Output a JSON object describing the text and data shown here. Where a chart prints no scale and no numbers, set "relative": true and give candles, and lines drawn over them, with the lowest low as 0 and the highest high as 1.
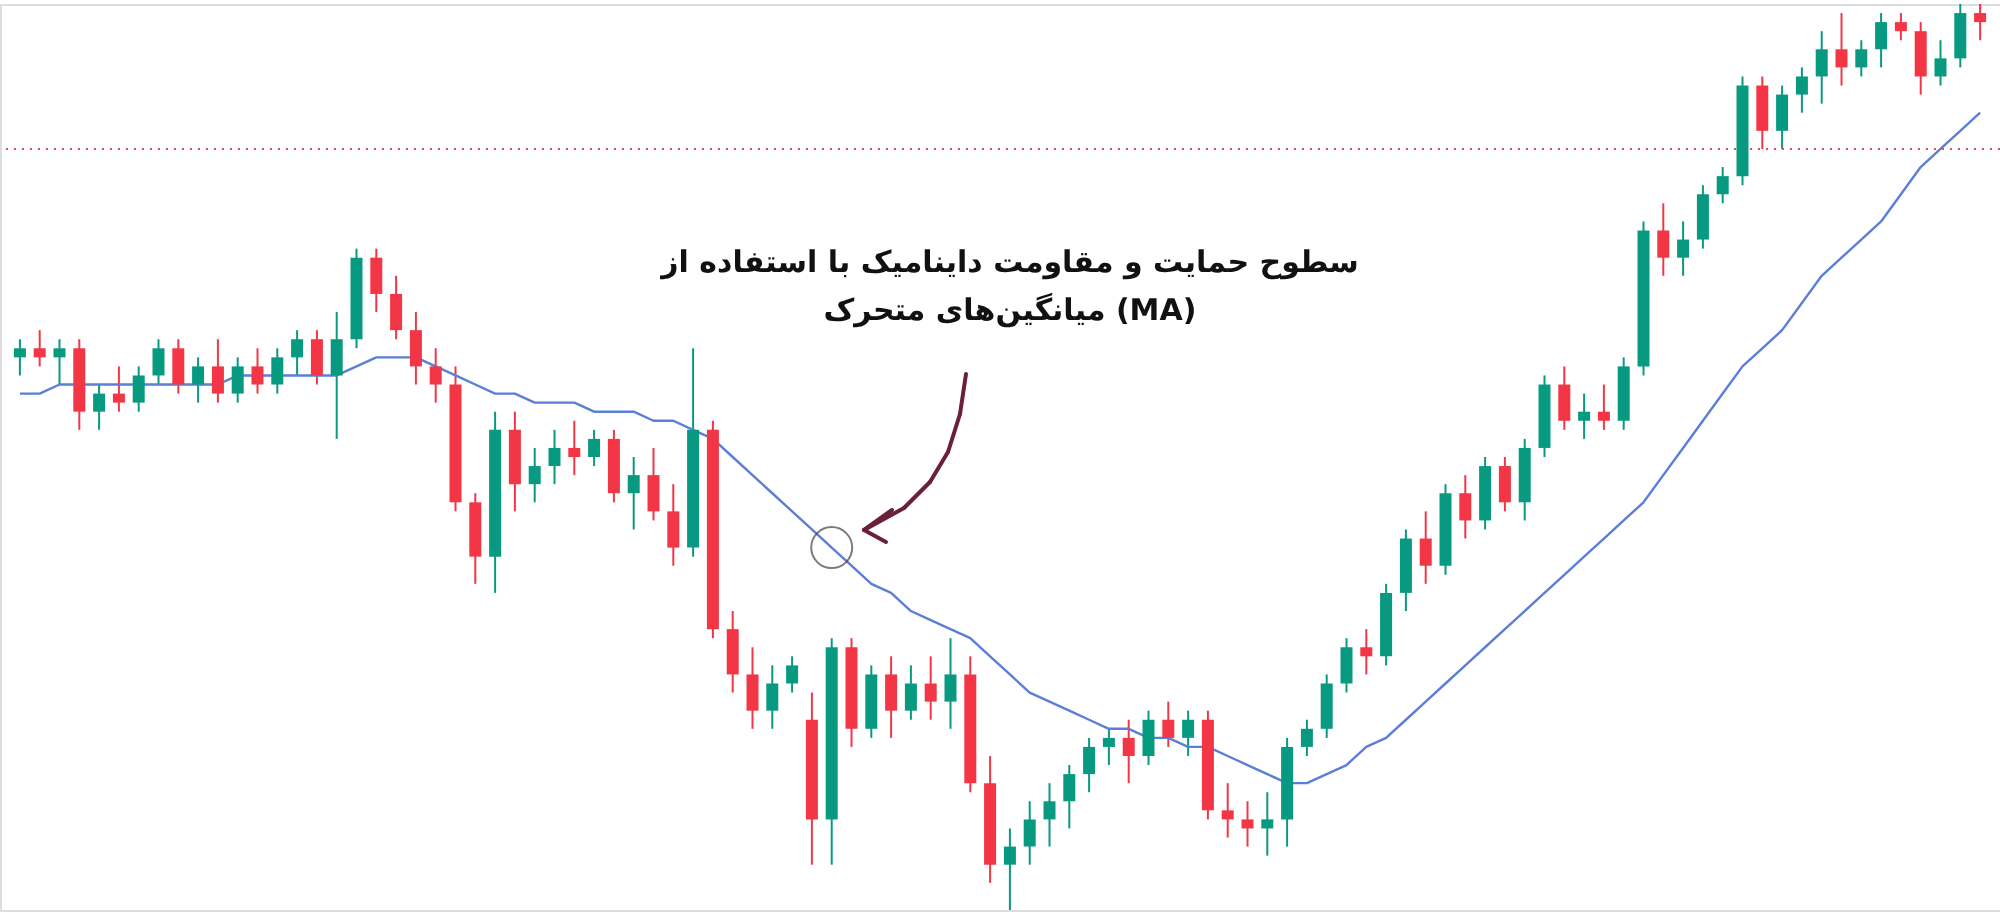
{
  "chart_data": {
    "type": "candlestick",
    "relative": true,
    "tick_labels": false,
    "grid": false,
    "categories": [
      null,
      null,
      null,
      null,
      null,
      null,
      null,
      null,
      null,
      null,
      null,
      null,
      null,
      null,
      null,
      null,
      null,
      null,
      null,
      null,
      null,
      null,
      null,
      null,
      null,
      null,
      null,
      null,
      null,
      null,
      null,
      null,
      null,
      null,
      null,
      null,
      null,
      null,
      null,
      null,
      null,
      null,
      null,
      null,
      null,
      null,
      null,
      null,
      null,
      null,
      null,
      null,
      null,
      null,
      null,
      null,
      null,
      null,
      null,
      null,
      null,
      null,
      null,
      null,
      null,
      null,
      null,
      null,
      null,
      null,
      null,
      null,
      null,
      null,
      null,
      null,
      null,
      null,
      null,
      null,
      null,
      null,
      null,
      null,
      null,
      null,
      null,
      null,
      null,
      null,
      null,
      null,
      null,
      null,
      null,
      null,
      null,
      null,
      null,
      null
    ],
    "ohlc": [
      [
        0.61,
        0.63,
        0.59,
        0.62
      ],
      [
        0.62,
        0.64,
        0.6,
        0.61
      ],
      [
        0.61,
        0.63,
        0.58,
        0.62
      ],
      [
        0.62,
        0.63,
        0.53,
        0.55
      ],
      [
        0.55,
        0.58,
        0.53,
        0.57
      ],
      [
        0.57,
        0.6,
        0.55,
        0.56
      ],
      [
        0.56,
        0.6,
        0.55,
        0.59
      ],
      [
        0.59,
        0.63,
        0.58,
        0.62
      ],
      [
        0.62,
        0.63,
        0.57,
        0.58
      ],
      [
        0.58,
        0.61,
        0.56,
        0.6
      ],
      [
        0.6,
        0.63,
        0.56,
        0.57
      ],
      [
        0.57,
        0.61,
        0.56,
        0.6
      ],
      [
        0.6,
        0.62,
        0.57,
        0.58
      ],
      [
        0.58,
        0.62,
        0.57,
        0.61
      ],
      [
        0.61,
        0.64,
        0.59,
        0.63
      ],
      [
        0.63,
        0.64,
        0.58,
        0.59
      ],
      [
        0.59,
        0.66,
        0.52,
        0.63
      ],
      [
        0.63,
        0.73,
        0.62,
        0.72
      ],
      [
        0.72,
        0.73,
        0.66,
        0.68
      ],
      [
        0.68,
        0.7,
        0.63,
        0.64
      ],
      [
        0.64,
        0.66,
        0.58,
        0.6
      ],
      [
        0.6,
        0.62,
        0.56,
        0.58
      ],
      [
        0.58,
        0.6,
        0.44,
        0.45
      ],
      [
        0.45,
        0.46,
        0.36,
        0.39
      ],
      [
        0.39,
        0.55,
        0.35,
        0.53
      ],
      [
        0.53,
        0.55,
        0.44,
        0.47
      ],
      [
        0.47,
        0.51,
        0.45,
        0.49
      ],
      [
        0.49,
        0.53,
        0.47,
        0.51
      ],
      [
        0.51,
        0.54,
        0.48,
        0.5
      ],
      [
        0.5,
        0.53,
        0.49,
        0.52
      ],
      [
        0.52,
        0.53,
        0.45,
        0.46
      ],
      [
        0.46,
        0.5,
        0.42,
        0.48
      ],
      [
        0.48,
        0.51,
        0.43,
        0.44
      ],
      [
        0.44,
        0.47,
        0.38,
        0.4
      ],
      [
        0.4,
        0.62,
        0.39,
        0.53
      ],
      [
        0.53,
        0.54,
        0.3,
        0.31
      ],
      [
        0.31,
        0.33,
        0.24,
        0.26
      ],
      [
        0.26,
        0.29,
        0.2,
        0.22
      ],
      [
        0.22,
        0.27,
        0.2,
        0.25
      ],
      [
        0.25,
        0.28,
        0.24,
        0.27
      ],
      [
        0.21,
        0.24,
        0.05,
        0.1
      ],
      [
        0.1,
        0.3,
        0.05,
        0.29
      ],
      [
        0.29,
        0.3,
        0.18,
        0.2
      ],
      [
        0.2,
        0.27,
        0.19,
        0.26
      ],
      [
        0.26,
        0.28,
        0.19,
        0.22
      ],
      [
        0.22,
        0.27,
        0.21,
        0.25
      ],
      [
        0.25,
        0.28,
        0.21,
        0.23
      ],
      [
        0.23,
        0.3,
        0.2,
        0.26
      ],
      [
        0.26,
        0.28,
        0.13,
        0.14
      ],
      [
        0.14,
        0.17,
        0.03,
        0.05
      ],
      [
        0.05,
        0.09,
        0.0,
        0.07
      ],
      [
        0.07,
        0.12,
        0.05,
        0.1
      ],
      [
        0.1,
        0.14,
        0.07,
        0.12
      ],
      [
        0.12,
        0.16,
        0.09,
        0.15
      ],
      [
        0.15,
        0.19,
        0.13,
        0.18
      ],
      [
        0.18,
        0.2,
        0.16,
        0.19
      ],
      [
        0.19,
        0.21,
        0.14,
        0.17
      ],
      [
        0.17,
        0.22,
        0.16,
        0.21
      ],
      [
        0.21,
        0.23,
        0.18,
        0.19
      ],
      [
        0.19,
        0.22,
        0.17,
        0.21
      ],
      [
        0.21,
        0.22,
        0.1,
        0.11
      ],
      [
        0.11,
        0.14,
        0.08,
        0.1
      ],
      [
        0.1,
        0.12,
        0.07,
        0.09
      ],
      [
        0.09,
        0.13,
        0.06,
        0.1
      ],
      [
        0.1,
        0.19,
        0.07,
        0.18
      ],
      [
        0.18,
        0.21,
        0.17,
        0.2
      ],
      [
        0.2,
        0.26,
        0.19,
        0.25
      ],
      [
        0.25,
        0.3,
        0.24,
        0.29
      ],
      [
        0.29,
        0.31,
        0.26,
        0.28
      ],
      [
        0.28,
        0.36,
        0.27,
        0.35
      ],
      [
        0.35,
        0.42,
        0.33,
        0.41
      ],
      [
        0.41,
        0.44,
        0.36,
        0.38
      ],
      [
        0.38,
        0.47,
        0.37,
        0.46
      ],
      [
        0.46,
        0.48,
        0.41,
        0.43
      ],
      [
        0.43,
        0.5,
        0.42,
        0.49
      ],
      [
        0.49,
        0.5,
        0.44,
        0.45
      ],
      [
        0.45,
        0.52,
        0.43,
        0.51
      ],
      [
        0.51,
        0.59,
        0.5,
        0.58
      ],
      [
        0.58,
        0.6,
        0.53,
        0.54
      ],
      [
        0.54,
        0.57,
        0.52,
        0.55
      ],
      [
        0.55,
        0.58,
        0.53,
        0.54
      ],
      [
        0.54,
        0.61,
        0.53,
        0.6
      ],
      [
        0.6,
        0.76,
        0.59,
        0.75
      ],
      [
        0.75,
        0.78,
        0.7,
        0.72
      ],
      [
        0.72,
        0.76,
        0.7,
        0.74
      ],
      [
        0.74,
        0.8,
        0.73,
        0.79
      ],
      [
        0.79,
        0.82,
        0.78,
        0.81
      ],
      [
        0.81,
        0.92,
        0.8,
        0.91
      ],
      [
        0.91,
        0.92,
        0.84,
        0.86
      ],
      [
        0.86,
        0.91,
        0.84,
        0.9
      ],
      [
        0.9,
        0.93,
        0.88,
        0.92
      ],
      [
        0.92,
        0.97,
        0.89,
        0.95
      ],
      [
        0.95,
        0.99,
        0.91,
        0.93
      ],
      [
        0.93,
        0.96,
        0.92,
        0.95
      ],
      [
        0.95,
        0.99,
        0.93,
        0.98
      ],
      [
        0.98,
        0.99,
        0.96,
        0.97
      ],
      [
        0.97,
        0.98,
        0.9,
        0.92
      ],
      [
        0.92,
        0.96,
        0.91,
        0.94
      ],
      [
        0.94,
        1.0,
        0.93,
        0.99
      ],
      [
        0.99,
        1.0,
        0.96,
        0.98
      ]
    ],
    "colors": [
      "#089981",
      "#f23645",
      "#089981",
      "#f23645",
      "#089981",
      "#f23645",
      "#089981",
      "#089981",
      "#f23645",
      "#089981",
      "#f23645",
      "#089981",
      "#f23645",
      "#089981",
      "#089981",
      "#f23645",
      "#089981",
      "#089981",
      "#f23645",
      "#f23645",
      "#f23645",
      "#f23645",
      "#f23645",
      "#f23645",
      "#089981",
      "#f23645",
      "#089981",
      "#089981",
      "#f23645",
      "#089981",
      "#f23645",
      "#089981",
      "#f23645",
      "#f23645",
      "#089981",
      "#f23645",
      "#f23645",
      "#f23645",
      "#089981",
      "#089981",
      "#f23645",
      "#089981",
      "#f23645",
      "#089981",
      "#f23645",
      "#089981",
      "#f23645",
      "#089981",
      "#f23645",
      "#f23645",
      "#089981",
      "#089981",
      "#089981",
      "#089981",
      "#089981",
      "#089981",
      "#f23645",
      "#089981",
      "#f23645",
      "#089981",
      "#f23645",
      "#f23645",
      "#f23645",
      "#089981",
      "#089981",
      "#089981",
      "#089981",
      "#089981",
      "#f23645",
      "#089981",
      "#089981",
      "#f23645",
      "#089981",
      "#f23645",
      "#089981",
      "#f23645",
      "#089981",
      "#089981",
      "#f23645",
      "#089981",
      "#f23645",
      "#089981",
      "#089981",
      "#f23645",
      "#089981",
      "#089981",
      "#089981",
      "#089981",
      "#f23645",
      "#089981",
      "#089981",
      "#089981",
      "#f23645",
      "#089981",
      "#089981",
      "#f23645",
      "#f23645",
      "#089981",
      "#089981",
      "#f23645"
    ],
    "series": [
      {
        "type": "line",
        "color": "#5b7fd6",
        "values": [
          0.57,
          0.57,
          0.58,
          0.58,
          0.58,
          0.58,
          0.58,
          0.58,
          0.58,
          0.58,
          0.58,
          0.59,
          0.59,
          0.59,
          0.59,
          0.59,
          0.59,
          0.6,
          0.61,
          0.61,
          0.61,
          0.6,
          0.59,
          0.58,
          0.57,
          0.57,
          0.56,
          0.56,
          0.56,
          0.55,
          0.55,
          0.55,
          0.54,
          0.54,
          0.53,
          0.52,
          0.5,
          0.48,
          0.46,
          0.44,
          0.42,
          0.4,
          0.38,
          0.36,
          0.35,
          0.33,
          0.32,
          0.31,
          0.3,
          0.28,
          0.26,
          0.24,
          0.23,
          0.22,
          0.21,
          0.2,
          0.2,
          0.19,
          0.19,
          0.18,
          0.18,
          0.17,
          0.16,
          0.15,
          0.14,
          0.14,
          0.15,
          0.16,
          0.18,
          0.19,
          0.21,
          0.23,
          0.25,
          0.27,
          0.29,
          0.31,
          0.33,
          0.35,
          0.37,
          0.39,
          0.41,
          0.43,
          0.45,
          0.48,
          0.51,
          0.54,
          0.57,
          0.6,
          0.62,
          0.64,
          0.67,
          0.7,
          0.72,
          0.74,
          0.76,
          0.79,
          0.82,
          0.84,
          0.86,
          0.88
        ]
      }
    ],
    "ref_lines": [
      {
        "axis": "y",
        "value": 0.84,
        "color": "#d9534f",
        "line_style": "dotted"
      }
    ],
    "annotations": [
      "سطوح حمایت و مقاومت داینامیک با استفاده از\nمیانگین‌های متحرک (MA)"
    ]
  }
}
